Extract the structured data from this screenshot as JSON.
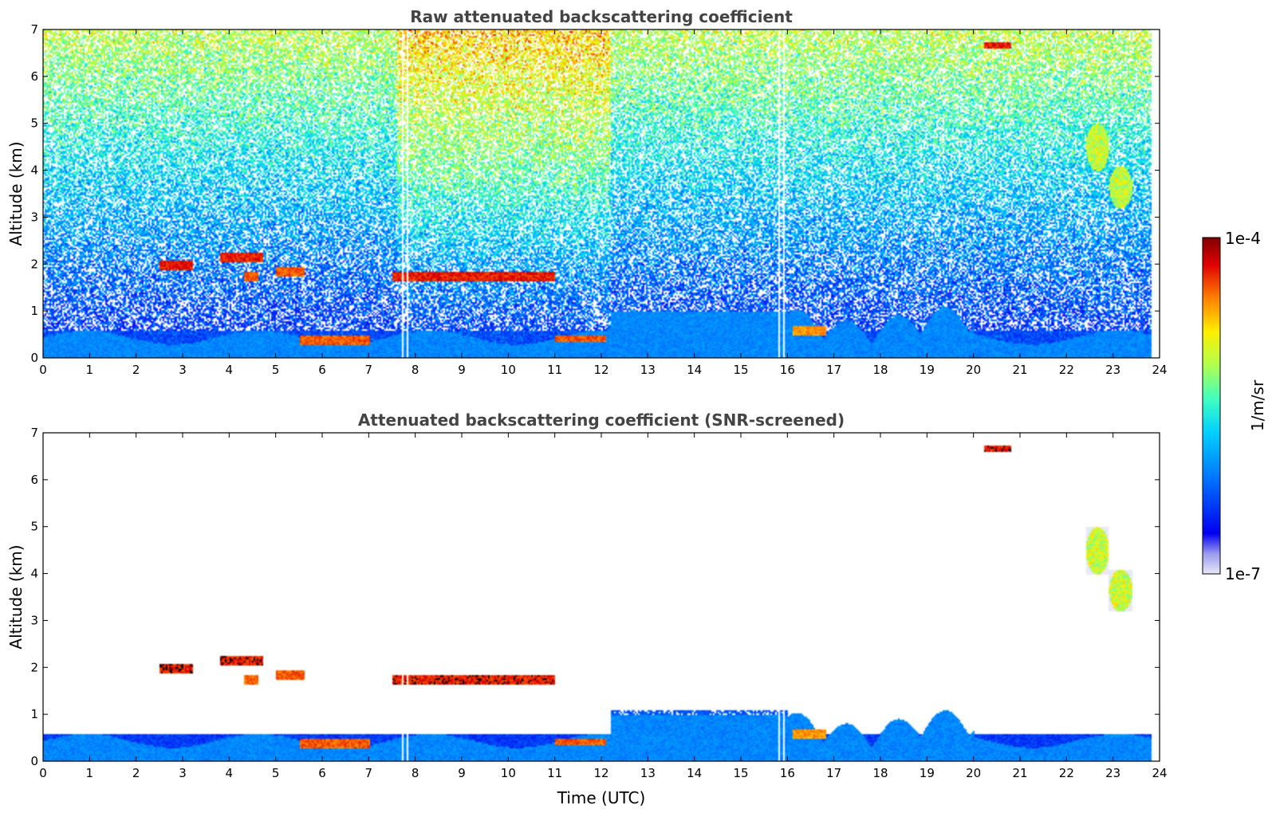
{
  "chart_data": [
    {
      "type": "heatmap",
      "title": "Raw attenuated backscattering coefficient",
      "xlabel": "",
      "ylabel": "Altitude (km)",
      "xlim": [
        0,
        24
      ],
      "ylim": [
        0,
        7
      ],
      "xticks": [
        "0",
        "1",
        "2",
        "3",
        "4",
        "5",
        "6",
        "7",
        "8",
        "9",
        "10",
        "11",
        "12",
        "13",
        "14",
        "15",
        "16",
        "17",
        "18",
        "19",
        "20",
        "21",
        "22",
        "23",
        "24"
      ],
      "yticks": [
        "0",
        "1",
        "2",
        "3",
        "4",
        "5",
        "6",
        "7"
      ],
      "screened": false,
      "features": [
        {
          "kind": "boundary-layer",
          "x": [
            0,
            23.8
          ],
          "y": [
            0,
            0.6
          ],
          "level": 0.25
        },
        {
          "kind": "cloud-layer",
          "x": [
            2.5,
            3.2
          ],
          "y": [
            1.9,
            2.1
          ],
          "level": 0.95
        },
        {
          "kind": "cloud-layer",
          "x": [
            3.8,
            4.7
          ],
          "y": [
            2.05,
            2.25
          ],
          "level": 0.95
        },
        {
          "kind": "cloud-layer",
          "x": [
            4.3,
            4.6
          ],
          "y": [
            1.65,
            1.85
          ],
          "level": 0.9
        },
        {
          "kind": "cloud-layer",
          "x": [
            5.0,
            5.6
          ],
          "y": [
            1.75,
            1.95
          ],
          "level": 0.9
        },
        {
          "kind": "cloud-layer",
          "x": [
            7.5,
            11.0
          ],
          "y": [
            1.65,
            1.85
          ],
          "level": 0.95
        },
        {
          "kind": "cloud-layer",
          "x": [
            5.5,
            7.0
          ],
          "y": [
            0.3,
            0.5
          ],
          "level": 0.9
        },
        {
          "kind": "cloud-layer",
          "x": [
            11.0,
            12.1
          ],
          "y": [
            0.35,
            0.5
          ],
          "level": 0.9
        },
        {
          "kind": "cloud-layer",
          "x": [
            16.1,
            16.8
          ],
          "y": [
            0.5,
            0.7
          ],
          "level": 0.85
        },
        {
          "kind": "cloud-layer",
          "x": [
            20.2,
            20.8
          ],
          "y": [
            6.6,
            6.75
          ],
          "level": 0.95
        },
        {
          "kind": "cirrus",
          "x": [
            22.4,
            22.9
          ],
          "y": [
            4.0,
            5.0
          ],
          "level": 0.6
        },
        {
          "kind": "cirrus",
          "x": [
            22.9,
            23.4
          ],
          "y": [
            3.2,
            4.1
          ],
          "level": 0.6
        }
      ]
    },
    {
      "type": "heatmap",
      "title": "Attenuated backscattering coefficient (SNR-screened)",
      "xlabel": "Time (UTC)",
      "ylabel": "Altitude (km)",
      "xlim": [
        0,
        24
      ],
      "ylim": [
        0,
        7
      ],
      "xticks": [
        "0",
        "1",
        "2",
        "3",
        "4",
        "5",
        "6",
        "7",
        "8",
        "9",
        "10",
        "11",
        "12",
        "13",
        "14",
        "15",
        "16",
        "17",
        "18",
        "19",
        "20",
        "21",
        "22",
        "23",
        "24"
      ],
      "yticks": [
        "0",
        "1",
        "2",
        "3",
        "4",
        "5",
        "6",
        "7"
      ],
      "screened": true,
      "colorbar": {
        "label": "1/m/sr",
        "min_label": "1e-7",
        "max_label": "1e-4",
        "scale": "log",
        "colormap": "jet"
      }
    }
  ]
}
